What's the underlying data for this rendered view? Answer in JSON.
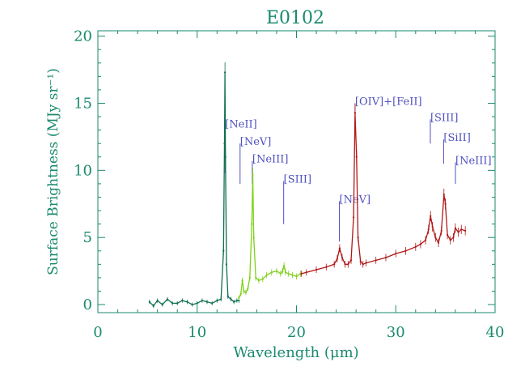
{
  "chart_data": {
    "type": "line",
    "title": "E0102",
    "xlabel": "Wavelength (μm)",
    "ylabel": "Surface Brightness (MJy sr⁻¹)",
    "xlim": [
      0,
      40
    ],
    "ylim": [
      -0.6,
      20.4
    ],
    "xticks": [
      0,
      10,
      20,
      30,
      40
    ],
    "yticks": [
      0,
      5,
      10,
      15,
      20
    ],
    "grid": false,
    "colors": {
      "axes": "#1a8a6e",
      "sl2": "#0f6f4f",
      "sl1": "#7fd11a",
      "ll": "#b01818",
      "annotation": "#5050c0"
    },
    "series": [
      {
        "key": "sl2",
        "x": [
          5.2,
          5.6,
          6.0,
          6.5,
          7.0,
          7.5,
          8.0,
          8.5,
          9.0,
          9.5,
          10.0,
          10.5,
          11.0,
          11.5,
          12.0,
          12.4,
          12.65,
          12.75,
          12.8,
          12.85,
          12.95,
          13.1,
          13.4,
          13.7,
          14.0,
          14.2
        ],
        "y": [
          0.2,
          -0.1,
          0.3,
          0.0,
          0.4,
          0.1,
          0.1,
          0.3,
          0.2,
          0.0,
          0.1,
          0.3,
          0.2,
          0.1,
          0.3,
          0.4,
          4.0,
          12.0,
          17.3,
          11.0,
          3.0,
          0.6,
          0.4,
          0.2,
          0.3,
          0.3
        ]
      },
      {
        "key": "sl1",
        "x": [
          14.2,
          14.4,
          14.55,
          14.7,
          14.9,
          15.1,
          15.3,
          15.5,
          15.6,
          15.7,
          15.9,
          16.2,
          16.6,
          17.0,
          17.5,
          18.0,
          18.4,
          18.6,
          18.75,
          18.9,
          19.2,
          19.6,
          20.0,
          20.4
        ],
        "y": [
          0.5,
          0.8,
          1.8,
          1.0,
          0.9,
          1.2,
          2.0,
          6.0,
          9.7,
          5.0,
          2.0,
          1.8,
          1.9,
          2.2,
          2.4,
          2.5,
          2.3,
          2.5,
          2.9,
          2.4,
          2.3,
          2.2,
          2.1,
          2.3
        ]
      },
      {
        "key": "ll",
        "x": [
          20.5,
          21.0,
          22.0,
          23.0,
          23.8,
          24.1,
          24.35,
          24.6,
          24.9,
          25.2,
          25.5,
          25.75,
          25.9,
          26.05,
          26.2,
          26.45,
          26.7,
          27.0,
          28.0,
          29.0,
          30.0,
          31.0,
          32.0,
          32.5,
          33.0,
          33.3,
          33.5,
          33.7,
          34.0,
          34.3,
          34.6,
          34.85,
          35.0,
          35.2,
          35.5,
          35.8,
          36.0,
          36.3,
          36.6,
          37.0
        ],
        "y": [
          2.3,
          2.4,
          2.6,
          2.8,
          3.0,
          3.4,
          4.2,
          3.5,
          3.0,
          3.0,
          3.3,
          6.5,
          14.3,
          11.0,
          5.0,
          3.2,
          3.0,
          3.1,
          3.3,
          3.5,
          3.8,
          4.0,
          4.3,
          4.5,
          4.8,
          5.6,
          6.6,
          5.8,
          5.0,
          4.6,
          5.5,
          8.2,
          7.5,
          5.2,
          4.8,
          5.0,
          5.7,
          5.4,
          5.6,
          5.5
        ]
      }
    ],
    "annotations": [
      {
        "label": "[NeII]",
        "x": 12.81,
        "y_bottom": 9.8,
        "y_top": 13.3
      },
      {
        "label": "[NeV]",
        "x": 14.32,
        "y_bottom": 9.0,
        "y_top": 12.0
      },
      {
        "label": "[NeIII]",
        "x": 15.55,
        "y_bottom": 9.0,
        "y_top": 10.7
      },
      {
        "label": "[SIII]",
        "x": 18.71,
        "y_bottom": 6.0,
        "y_top": 9.2
      },
      {
        "label": "[NeV]",
        "x": 24.32,
        "y_bottom": 4.7,
        "y_top": 7.7
      },
      {
        "label": "[OIV]+[FeII]",
        "x": 25.9,
        "y_bottom": 14.4,
        "y_top": 15.0
      },
      {
        "label": "[SIII]",
        "x": 33.48,
        "y_bottom": 12.0,
        "y_top": 13.8
      },
      {
        "label": "[SiII]",
        "x": 34.82,
        "y_bottom": 10.5,
        "y_top": 12.3
      },
      {
        "label": "[NeIII]",
        "x": 36.01,
        "y_bottom": 9.0,
        "y_top": 10.6
      }
    ]
  }
}
